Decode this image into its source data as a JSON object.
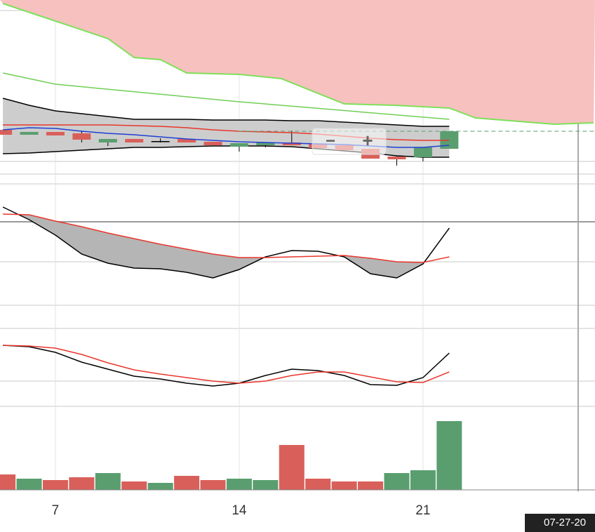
{
  "chart_data": [
    {
      "type": "candlestick",
      "x": [
        5,
        6,
        7,
        8,
        9,
        10,
        11,
        12,
        13,
        14,
        15,
        16,
        17,
        18,
        19,
        20,
        21,
        22
      ],
      "open": [
        75,
        68,
        72,
        70,
        57,
        62,
        59,
        62,
        58,
        51,
        53,
        57,
        55,
        53,
        48,
        37,
        36,
        48
      ],
      "high": [
        75,
        72,
        72,
        74,
        62,
        62,
        63,
        62,
        58,
        56,
        57,
        74,
        55,
        53,
        48,
        38,
        50,
        73
      ],
      "low": [
        68,
        68,
        67,
        57,
        52,
        57,
        57,
        57,
        53,
        44,
        50,
        53,
        49,
        46,
        34,
        24,
        30,
        48
      ],
      "close": [
        68,
        72,
        67,
        61,
        62,
        57,
        59,
        57,
        53,
        56,
        57,
        53,
        49,
        46,
        34,
        33,
        50,
        73
      ],
      "up_color": "#5a9e6f",
      "down_color": "#d9605a",
      "ylim": [
        0,
        260
      ],
      "bands": {
        "upper": [
          120,
          110,
          102,
          98,
          94,
          90,
          90,
          90,
          89,
          89,
          89,
          88,
          88,
          86,
          84,
          82,
          80,
          80
        ],
        "lower": [
          41,
          42,
          44,
          46,
          48,
          50,
          50,
          51,
          52,
          52,
          52,
          51,
          48,
          45,
          42,
          38,
          36,
          36
        ],
        "color": "#000000",
        "fill": "#c8c8c8"
      },
      "series": [
        {
          "color": "#e8372c",
          "values": [
            82,
            82,
            82,
            82,
            82,
            81,
            80,
            78,
            75,
            73,
            72,
            71,
            69,
            66,
            63,
            61,
            60,
            60
          ]
        },
        {
          "color": "#1f3fd6",
          "values": [
            75,
            78,
            77,
            73,
            70,
            68,
            65,
            62,
            60,
            58,
            57,
            56,
            55,
            54,
            52,
            50,
            50,
            53
          ]
        }
      ],
      "cloud": {
        "x": [
          5,
          7,
          9,
          10,
          11,
          12,
          14,
          15.6,
          18,
          19.9,
          22,
          23,
          26,
          27.5
        ],
        "upper": [
          255,
          230,
          205,
          178,
          175,
          156,
          154,
          148,
          112,
          110,
          106,
          92,
          83,
          85
        ],
        "color": "#7ee05a",
        "fill": "#f6c1bf"
      },
      "baseline": {
        "x": [
          5,
          7,
          14,
          22
        ],
        "values": [
          156,
          140,
          115,
          90
        ],
        "color": "#6fce55"
      },
      "controls": {
        "zoom_out": "−",
        "zoom_in": "+"
      }
    },
    {
      "type": "line",
      "x": [
        5,
        6,
        7,
        8,
        9,
        10,
        11,
        12,
        13,
        14,
        15,
        16,
        17,
        18,
        19,
        20,
        21,
        22
      ],
      "ylim": [
        0,
        200
      ],
      "series": [
        {
          "color": "#000000",
          "values": [
            165,
            147,
            125,
            98,
            85,
            78,
            77,
            72,
            64,
            76,
            94,
            103,
            102,
            94,
            70,
            64,
            84,
            135
          ]
        },
        {
          "color": "#e8372c",
          "values": [
            155,
            154,
            145,
            137,
            128,
            120,
            112,
            105,
            98,
            93,
            93,
            94,
            95,
            96,
            92,
            87,
            86,
            94
          ]
        }
      ],
      "fill": "#b5b5b5"
    },
    {
      "type": "line",
      "x": [
        5,
        6,
        7,
        8,
        9,
        10,
        11,
        12,
        13,
        14,
        15,
        16,
        17,
        18,
        19,
        20,
        21,
        22
      ],
      "ylim": [
        0,
        120
      ],
      "series": [
        {
          "color": "#000000",
          "values": [
            88,
            86,
            78,
            64,
            54,
            44,
            40,
            34,
            30,
            34,
            45,
            54,
            52,
            45,
            32,
            31,
            42,
            77
          ]
        },
        {
          "color": "#e8372c",
          "values": [
            88,
            87,
            84,
            75,
            63,
            53,
            47,
            42,
            37,
            34,
            37,
            45,
            50,
            50,
            43,
            36,
            35,
            50
          ]
        }
      ]
    },
    {
      "type": "bar",
      "x": [
        5,
        6,
        7,
        8,
        9,
        10,
        11,
        12,
        13,
        14,
        15,
        16,
        17,
        18,
        19,
        20,
        21,
        22
      ],
      "values": [
        22,
        16,
        14,
        18,
        24,
        12,
        10,
        20,
        14,
        16,
        14,
        64,
        16,
        12,
        12,
        24,
        28,
        98
      ],
      "colors": [
        "#d9605a",
        "#5a9e6f",
        "#d9605a",
        "#d9605a",
        "#5a9e6f",
        "#d9605a",
        "#5a9e6f",
        "#d9605a",
        "#d9605a",
        "#5a9e6f",
        "#5a9e6f",
        "#d9605a",
        "#d9605a",
        "#d9605a",
        "#d9605a",
        "#5a9e6f",
        "#5a9e6f",
        "#5a9e6f"
      ],
      "ylim": [
        0,
        118
      ],
      "xlim": [
        4.89,
        27.55
      ],
      "xticks": [
        7,
        14,
        21
      ],
      "cursor_label": "07-27-20"
    }
  ]
}
